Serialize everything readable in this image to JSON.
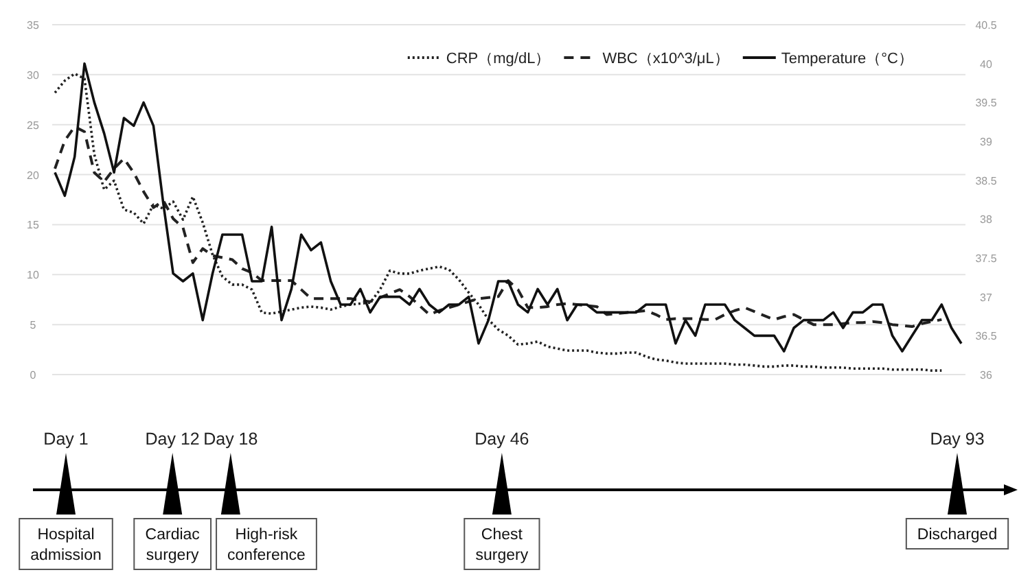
{
  "chart_data": [
    {
      "type": "line",
      "categories": [
        null,
        null,
        null,
        null,
        null,
        null,
        null,
        null,
        null,
        null,
        null,
        null,
        null,
        null,
        null,
        null,
        null,
        null,
        null,
        null,
        null,
        null,
        null,
        null,
        null,
        null,
        null,
        null,
        null,
        null,
        null,
        null,
        null,
        null,
        null,
        null,
        null,
        null,
        null,
        null,
        null,
        null,
        null,
        null,
        null,
        null,
        null,
        null,
        null,
        null,
        null,
        null,
        null,
        null,
        null,
        null,
        null,
        null,
        null,
        null,
        null,
        null,
        null,
        null,
        null,
        null,
        null,
        null,
        null,
        null,
        null,
        null,
        null,
        null,
        null,
        null,
        null,
        null,
        null,
        null,
        null,
        null,
        null,
        null,
        null,
        null,
        null,
        null,
        null,
        null,
        null,
        null,
        null
      ],
      "ylim": [
        0,
        35
      ],
      "yticks": [
        0,
        5,
        10,
        15,
        20,
        25,
        30,
        35
      ],
      "y2lim": [
        36,
        40.5
      ],
      "y2ticks": [
        36,
        36.5,
        37,
        37.5,
        38,
        38.5,
        39,
        39.5,
        40,
        40.5
      ],
      "grid": "y",
      "legend": "top right",
      "marker": "none",
      "series": [
        {
          "name": "CRP（mg/dL）",
          "color": "#222222",
          "line_style": "dotted",
          "values": [
            28.2,
            29.4,
            30.1,
            29.6,
            22,
            18.5,
            19.4,
            16.5,
            16.2,
            15.1,
            17,
            16.6,
            17.3,
            15.5,
            17.8,
            15.2,
            12,
            9.8,
            9,
            9,
            8.5,
            6.2,
            6.1,
            6.3,
            6.5,
            6.7,
            6.8,
            6.7,
            6.5,
            6.8,
            7,
            7.1,
            7.2,
            8.5,
            10.4,
            10.1,
            10.1,
            10.4,
            10.6,
            10.8,
            10.5,
            9.5,
            8.2,
            7,
            5.5,
            4.5,
            3.9,
            3,
            3.1,
            3.3,
            2.8,
            2.6,
            2.4,
            2.4,
            2.4,
            2.2,
            2.1,
            2.1,
            2.2,
            2.2,
            1.8,
            1.5,
            1.4,
            1.2,
            1.1,
            1.1,
            1.1,
            1.1,
            1.1,
            1,
            1,
            0.9,
            0.8,
            0.8,
            0.9,
            0.9,
            0.8,
            0.8,
            0.7,
            0.7,
            0.7,
            0.6,
            0.6,
            0.6,
            0.6,
            0.5,
            0.5,
            0.5,
            0.5,
            0.4,
            0.4,
            null,
            null
          ]
        },
        {
          "name": "WBC（x10^3/μL）",
          "color": "#222222",
          "line_style": "dashed",
          "values": [
            20.6,
            23.4,
            24.8,
            24.3,
            20.2,
            19.3,
            20.6,
            21.6,
            20.2,
            18.3,
            16.7,
            17.4,
            15.6,
            14.7,
            11.2,
            12.6,
            11.9,
            11.7,
            11.5,
            10.6,
            10.2,
            9.4,
            9.4,
            9.4,
            9.4,
            8.5,
            7.6,
            7.6,
            7.6,
            7.6,
            7.6,
            7.4,
            7.3,
            7.7,
            8.1,
            8.5,
            7.8,
            6.9,
            6,
            6.4,
            6.7,
            7,
            7.3,
            7.6,
            7.7,
            7.8,
            9.4,
            8.5,
            6.7,
            6.7,
            6.8,
            7,
            7.1,
            7,
            6.9,
            6.8,
            6,
            6.1,
            6.2,
            6.3,
            6.4,
            6,
            5.5,
            5.6,
            5.6,
            5.6,
            5.5,
            5.5,
            6,
            6.4,
            6.7,
            6.3,
            5.9,
            5.5,
            5.8,
            6,
            5.5,
            5,
            5,
            5,
            5.1,
            5.2,
            5.2,
            5.3,
            5.2,
            5,
            4.9,
            4.8,
            5.1,
            5.3,
            5.5,
            null,
            null
          ]
        },
        {
          "name": "Temperature（°C）",
          "color": "#111111",
          "line_style": "solid",
          "axis": "y2",
          "values": [
            38.6,
            38.3,
            38.8,
            40.0,
            39.5,
            39.1,
            38.6,
            39.3,
            39.2,
            39.5,
            39.2,
            38.2,
            37.3,
            37.2,
            37.3,
            36.7,
            37.3,
            37.8,
            37.8,
            37.8,
            37.2,
            37.2,
            37.9,
            36.7,
            37.1,
            37.8,
            37.6,
            37.7,
            37.2,
            36.9,
            36.9,
            37.1,
            36.8,
            37.0,
            37.0,
            37.0,
            36.9,
            37.1,
            36.9,
            36.8,
            36.9,
            36.9,
            37.0,
            36.4,
            36.7,
            37.2,
            37.2,
            36.9,
            36.8,
            37.1,
            36.9,
            37.1,
            36.7,
            36.9,
            36.9,
            36.8,
            36.8,
            36.8,
            36.8,
            36.8,
            36.9,
            36.9,
            36.9,
            36.4,
            36.7,
            36.5,
            36.9,
            36.9,
            36.9,
            36.7,
            36.6,
            36.5,
            36.5,
            36.5,
            36.3,
            36.6,
            36.7,
            36.7,
            36.7,
            36.8,
            36.6,
            36.8,
            36.8,
            36.9,
            36.9,
            36.5,
            36.3,
            36.5,
            36.7,
            36.7,
            36.9,
            36.6,
            36.4
          ]
        }
      ]
    },
    {
      "type": "other",
      "values": [
        1,
        12,
        18,
        46,
        93
      ],
      "value_labels": [
        "Day 1",
        "Day 12",
        "Day 18",
        "Day 46",
        "Day 93"
      ],
      "categories": [
        "Hospital admission",
        "Cardiac surgery",
        "High-risk conference",
        "Chest surgery",
        "Discharged"
      ]
    }
  ]
}
